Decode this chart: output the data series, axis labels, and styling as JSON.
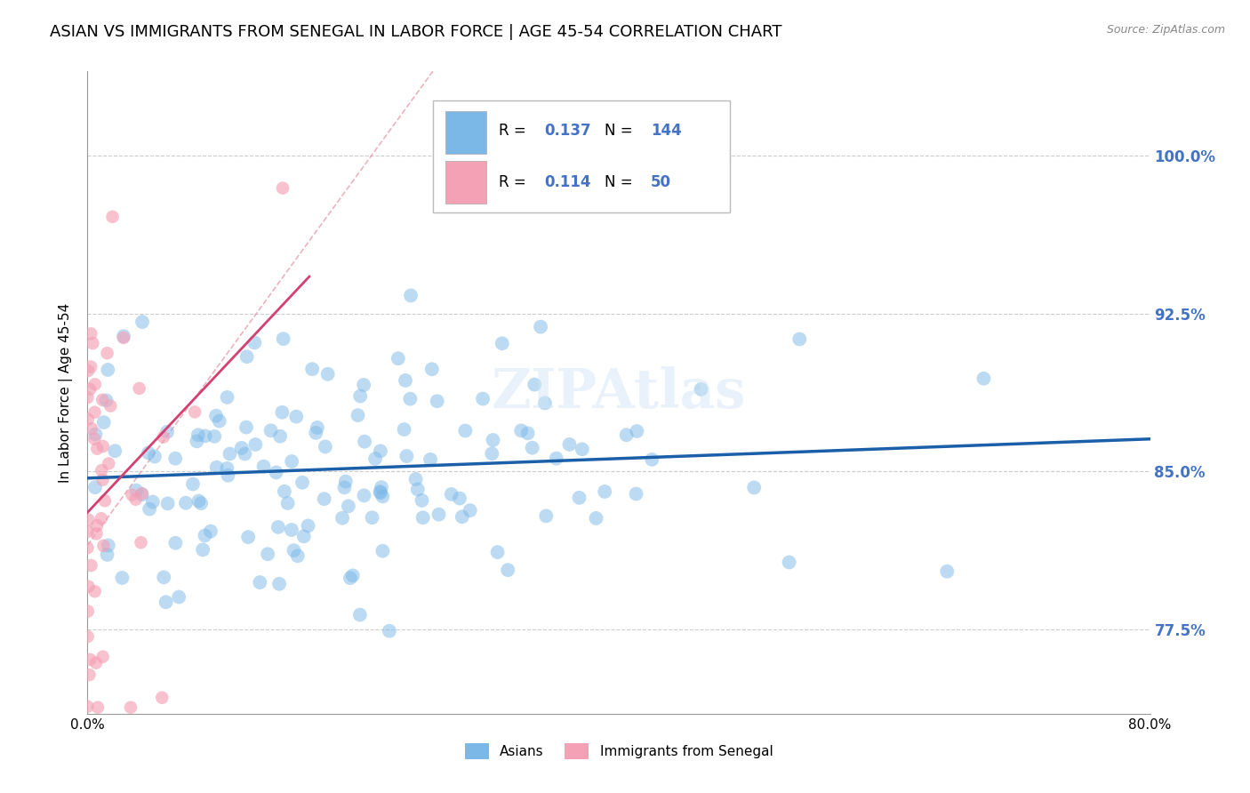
{
  "title": "ASIAN VS IMMIGRANTS FROM SENEGAL IN LABOR FORCE | AGE 45-54 CORRELATION CHART",
  "source": "Source: ZipAtlas.com",
  "ylabel": "In Labor Force | Age 45-54",
  "xlim": [
    0.0,
    0.8
  ],
  "ylim": [
    0.735,
    1.04
  ],
  "yticks": [
    0.775,
    0.85,
    0.925,
    1.0
  ],
  "ytick_labels": [
    "77.5%",
    "85.0%",
    "92.5%",
    "100.0%"
  ],
  "xticks": [
    0.0,
    0.1,
    0.2,
    0.3,
    0.4,
    0.5,
    0.6,
    0.7,
    0.8
  ],
  "xtick_labels": [
    "0.0%",
    "",
    "",
    "",
    "",
    "",
    "",
    "",
    "80.0%"
  ],
  "blue_R": 0.137,
  "blue_N": 144,
  "pink_R": 0.114,
  "pink_N": 50,
  "blue_color": "#7bb8e8",
  "pink_color": "#f4a0b5",
  "blue_trend_color": "#1a5fa8",
  "pink_trend_color": "#d44070",
  "watermark": "ZIPAtlas",
  "legend_label_blue": "Asians",
  "legend_label_pink": "Immigrants from Senegal",
  "background_color": "#ffffff",
  "grid_color": "#cccccc",
  "title_fontsize": 13,
  "axis_label_fontsize": 11,
  "tick_label_color_blue": "#4472c4",
  "blue_seed": 42,
  "pink_seed": 7
}
